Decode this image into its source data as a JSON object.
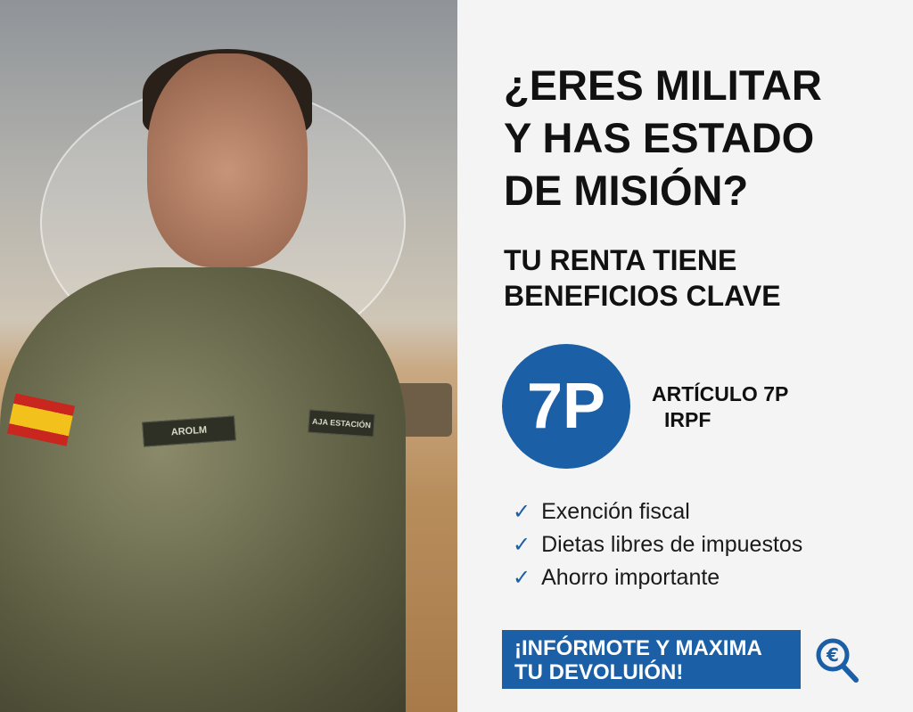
{
  "headline": {
    "line1": "¿ERES MILITAR",
    "line2": "Y HAS ESTADO",
    "line3": "DE MISIÓN?"
  },
  "subheadline": {
    "line1": "TU RENTA TIENE",
    "line2": "BENEFICIOS CLAVE"
  },
  "badge": {
    "text": "7P",
    "color": "#1b5fa6"
  },
  "article": {
    "line1": "ARTÍCULO 7P",
    "line2": "IRPF"
  },
  "benefits": [
    {
      "label": "Exención fiscal"
    },
    {
      "label": "Dietas libres de impuestos"
    },
    {
      "label": "Ahorro importante"
    }
  ],
  "cta": {
    "line1": "¡INFÓRMOTE Y MAXIMA",
    "line2": "TU DEVOLUIÓN!",
    "icon": "euro-search-icon"
  },
  "photo": {
    "name_tag": "AROLM",
    "chest_tag": "AJA ESTACIÓN"
  }
}
